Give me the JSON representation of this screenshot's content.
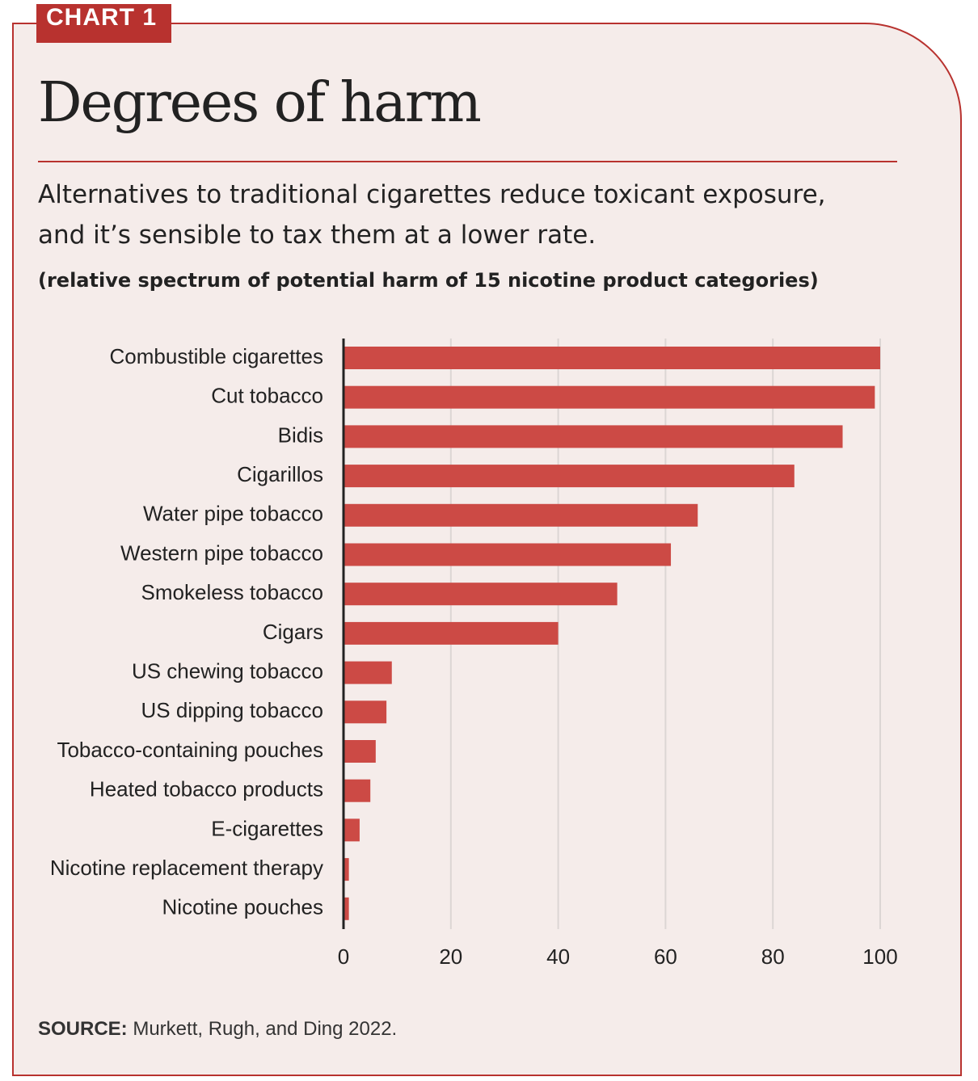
{
  "chart_data": {
    "type": "bar",
    "orientation": "horizontal",
    "badge": "CHART 1",
    "title": "Degrees of harm",
    "subtitle": "Alternatives to traditional cigarettes reduce toxicant exposure, and it’s sensible to tax them at a lower rate.",
    "note": "(relative spectrum of potential harm of 15 nicotine product categories)",
    "categories": [
      "Combustible cigarettes",
      "Cut tobacco",
      "Bidis",
      "Cigarillos",
      "Water pipe tobacco",
      "Western pipe tobacco",
      "Smokeless tobacco",
      "Cigars",
      "US chewing tobacco",
      "US dipping tobacco",
      "Tobacco-containing pouches",
      "Heated tobacco products",
      "E-cigarettes",
      "Nicotine replacement therapy",
      "Nicotine pouches"
    ],
    "values": [
      100,
      99,
      93,
      84,
      66,
      61,
      51,
      40,
      9,
      8,
      6,
      5,
      3,
      1,
      1
    ],
    "color": "#cc4a45",
    "xlim": [
      0,
      100
    ],
    "xticks": [
      0,
      20,
      40,
      60,
      80,
      100
    ],
    "grid": true,
    "source": {
      "label": "SOURCE:",
      "text": "Murkett, Rugh, and Ding 2022."
    }
  }
}
